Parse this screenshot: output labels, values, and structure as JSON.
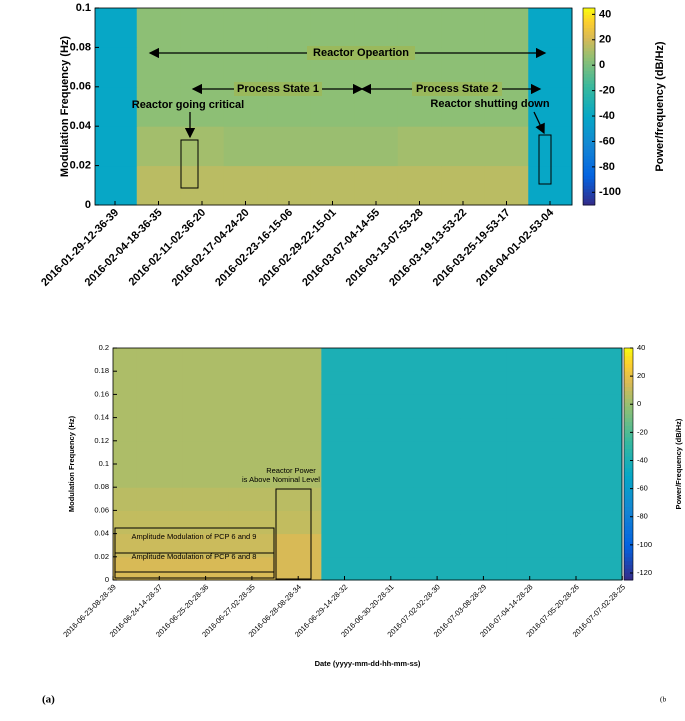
{
  "chart_data": [
    {
      "type": "heatmap",
      "xlabel": "Date (yyyy-mm-dd-hh-mm-ss)",
      "ylabel": "Modulation Frequency (Hz)",
      "categories": [
        "2016-01-29-12-36-39",
        "2016-02-04-18-36-35",
        "2016-02-11-02-36-20",
        "2016-02-17-04-24-20",
        "2016-02-23-16-15-06",
        "2016-02-29-22-15-01",
        "2016-03-07-04-14-55",
        "2016-03-13-07-53-28",
        "2016-03-19-13-53-22",
        "2016-03-25-19-53-17",
        "2016-04-01-02-53-04"
      ],
      "ylim": [
        0,
        0.1
      ],
      "yticks": [
        0,
        0.02,
        0.04,
        0.06,
        0.08,
        0.1
      ],
      "values": [
        [
          -40,
          15,
          15,
          15,
          15,
          15,
          15,
          15,
          15,
          15,
          -40
        ],
        [
          -40,
          10,
          10,
          8,
          8,
          8,
          8,
          10,
          10,
          10,
          -40
        ],
        [
          -40,
          5,
          5,
          5,
          5,
          5,
          5,
          5,
          5,
          5,
          -40
        ],
        [
          -40,
          5,
          5,
          5,
          5,
          5,
          5,
          5,
          5,
          5,
          -40
        ],
        [
          -40,
          5,
          5,
          5,
          5,
          5,
          5,
          5,
          5,
          5,
          -40
        ]
      ],
      "clim": [
        -110,
        45
      ],
      "cticks": [
        40,
        20,
        0,
        -20,
        -40,
        -60,
        -80,
        -100
      ],
      "colorbar_label": "Power/frequency (dB/Hz)",
      "annotations": [
        "Reactor Opeartion",
        "Process State 1",
        "Process State 2",
        "Reactor going critical",
        "Reactor shutting down"
      ],
      "caption": "(a)"
    },
    {
      "type": "heatmap",
      "xlabel": "Date (yyyy-mm-dd-hh-mm-ss)",
      "ylabel": "Modulation Frequency (Hz)",
      "categories": [
        "2016-06-23-08-28-39",
        "2016-06-24-14-28-37",
        "2016-06-25-20-28-36",
        "2016-06-27-02-28-35",
        "2016-06-28-08-28-34",
        "2016-06-29-14-28-32",
        "2016-06-30-20-28-31",
        "2016-07-02-02-28-30",
        "2016-07-03-08-28-29",
        "2016-07-04-14-28-28",
        "2016-07-05-20-28-26",
        "2016-07-07-02-28-25"
      ],
      "ylim": [
        0,
        0.2
      ],
      "yticks": [
        0,
        0.02,
        0.04,
        0.06,
        0.08,
        0.1,
        0.12,
        0.14,
        0.16,
        0.18,
        0.2
      ],
      "values": [
        [
          15,
          15,
          15,
          15,
          15,
          -40,
          -40,
          -40,
          -40,
          -40,
          -40,
          -40
        ],
        [
          12,
          12,
          12,
          12,
          15,
          -40,
          -40,
          -40,
          -40,
          -40,
          -40,
          -40
        ],
        [
          10,
          10,
          10,
          10,
          10,
          -40,
          -40,
          -40,
          -40,
          -40,
          -40,
          -40
        ],
        [
          8,
          8,
          8,
          8,
          8,
          -40,
          -40,
          -40,
          -40,
          -40,
          -40,
          -40
        ],
        [
          5,
          5,
          5,
          5,
          5,
          -40,
          -40,
          -40,
          -40,
          -40,
          -40,
          -40
        ],
        [
          5,
          5,
          5,
          5,
          5,
          -40,
          -40,
          -40,
          -40,
          -40,
          -40,
          -40
        ],
        [
          5,
          5,
          5,
          5,
          5,
          -40,
          -40,
          -40,
          -40,
          -40,
          -40,
          -40
        ],
        [
          5,
          5,
          5,
          5,
          5,
          -40,
          -40,
          -40,
          -40,
          -40,
          -40,
          -40
        ],
        [
          5,
          5,
          5,
          5,
          5,
          -40,
          -40,
          -40,
          -40,
          -40,
          -40,
          -40
        ],
        [
          5,
          5,
          5,
          5,
          5,
          -40,
          -40,
          -40,
          -40,
          -40,
          -40,
          -40
        ]
      ],
      "clim": [
        -125,
        40
      ],
      "cticks": [
        40,
        20,
        0,
        -20,
        -40,
        -60,
        -80,
        -100,
        -120
      ],
      "colorbar_label": "Power/Frequency (dB/Hz)",
      "annotations": [
        "Reactor Power",
        "is Above Nominal Level",
        "Amplitude Modulation of PCP 6 and 9",
        "Amplitude Modulation of PCP 6 and 8"
      ],
      "caption": "(b"
    }
  ]
}
